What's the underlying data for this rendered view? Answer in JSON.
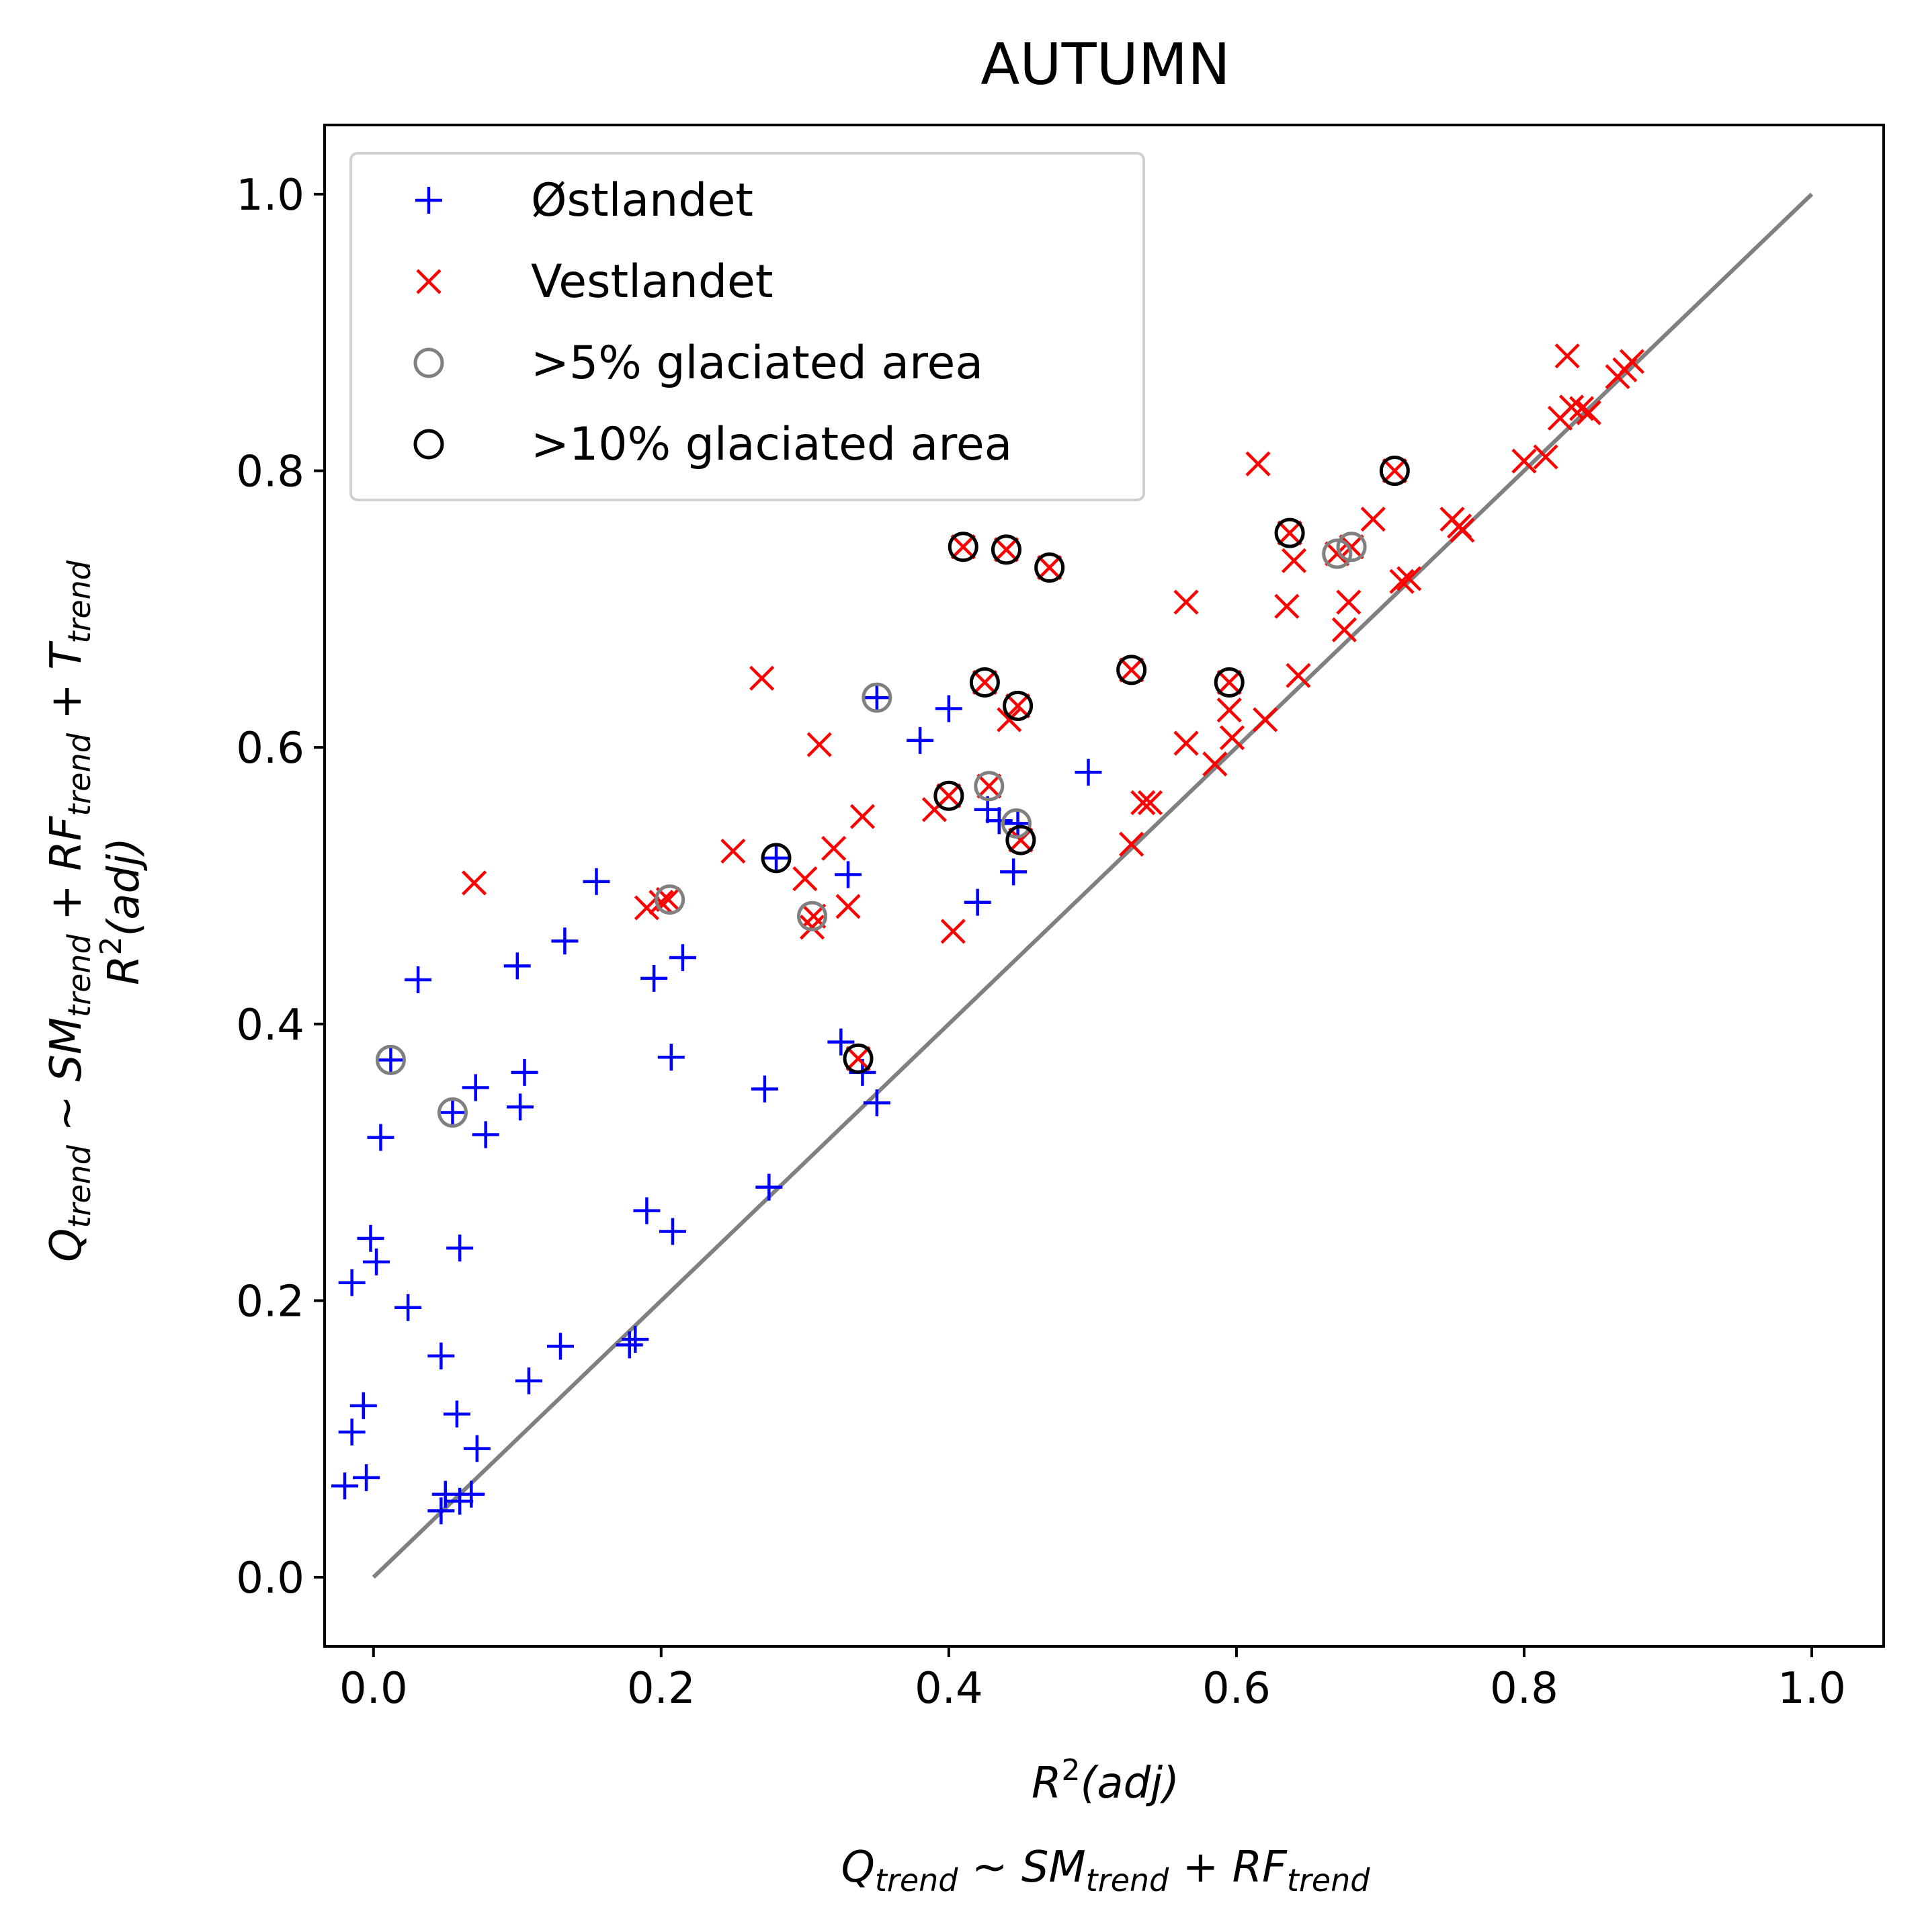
{
  "chart_data": {
    "type": "scatter",
    "title": "AUTUMN",
    "xlabel": {
      "line1_base": "R",
      "line1_sup": "2",
      "line1_rest": "(adj)",
      "line2_q": "Q",
      "line2_q_sub": "trend",
      "line2_tilde": " ~ ",
      "line2_sm": "SM",
      "line2_sm_sub": "trend",
      "line2_plus": " + ",
      "line2_rf": "RF",
      "line2_rf_sub": "trend"
    },
    "ylabel": {
      "line1_q": "Q",
      "line1_q_sub": "trend",
      "line1_tilde": " ~ ",
      "line1_sm": "SM",
      "line1_sm_sub": "trend",
      "line1_plus1": " + ",
      "line1_rf": "RF",
      "line1_rf_sub": "trend",
      "line1_plus2": " + ",
      "line1_t": "T",
      "line1_t_sub": "trend",
      "line2_base": "R",
      "line2_sup": "2",
      "line2_rest": "(adj)"
    },
    "xlim": [
      -0.034,
      1.05
    ],
    "ylim": [
      -0.05,
      1.05
    ],
    "xticks": [
      "0.0",
      "0.2",
      "0.4",
      "0.6",
      "0.8",
      "1.0"
    ],
    "yticks": [
      "0.0",
      "0.2",
      "0.4",
      "0.6",
      "0.8",
      "1.0"
    ],
    "legend_position": "top-left",
    "reference_line": {
      "x": [
        0,
        1
      ],
      "y": [
        0,
        1
      ],
      "color": "#808080"
    },
    "colors": {
      "ostlandet": "#0000ff",
      "vestlandet": "#ff0000",
      "glacier5": "#808080",
      "glacier10": "#000000"
    },
    "series": [
      {
        "name": "Østlandet",
        "marker": "plus",
        "color": "#0000ff",
        "points": [
          [
            -0.02,
            0.066
          ],
          [
            -0.015,
            0.105
          ],
          [
            -0.005,
            0.072
          ],
          [
            -0.007,
            0.124
          ],
          [
            -0.015,
            0.213
          ],
          [
            -0.002,
            0.245
          ],
          [
            0.002,
            0.228
          ],
          [
            0.005,
            0.318
          ],
          [
            0.012,
            0.374
          ],
          [
            0.024,
            0.195
          ],
          [
            0.031,
            0.432
          ],
          [
            0.047,
            0.16
          ],
          [
            0.047,
            0.048
          ],
          [
            0.05,
            0.06
          ],
          [
            0.055,
            0.336
          ],
          [
            0.058,
            0.118
          ],
          [
            0.06,
            0.055
          ],
          [
            0.06,
            0.238
          ],
          [
            0.068,
            0.06
          ],
          [
            0.071,
            0.354
          ],
          [
            0.072,
            0.093
          ],
          [
            0.078,
            0.32
          ],
          [
            0.1,
            0.442
          ],
          [
            0.102,
            0.34
          ],
          [
            0.105,
            0.365
          ],
          [
            0.108,
            0.142
          ],
          [
            0.133,
            0.46
          ],
          [
            0.13,
            0.167
          ],
          [
            0.155,
            0.503
          ],
          [
            0.178,
            0.168
          ],
          [
            0.182,
            0.172
          ],
          [
            0.195,
            0.433
          ],
          [
            0.19,
            0.265
          ],
          [
            0.207,
            0.376
          ],
          [
            0.208,
            0.25
          ],
          [
            0.215,
            0.448
          ],
          [
            0.272,
            0.353
          ],
          [
            0.275,
            0.282
          ],
          [
            0.28,
            0.52
          ],
          [
            0.325,
            0.387
          ],
          [
            0.33,
            0.508
          ],
          [
            0.34,
            0.365
          ],
          [
            0.35,
            0.343
          ],
          [
            0.35,
            0.636
          ],
          [
            0.38,
            0.605
          ],
          [
            0.4,
            0.628
          ],
          [
            0.42,
            0.488
          ],
          [
            0.427,
            0.555
          ],
          [
            0.435,
            0.547
          ],
          [
            0.445,
            0.51
          ],
          [
            0.448,
            0.545
          ],
          [
            0.497,
            0.582
          ]
        ]
      },
      {
        "name": "Vestlandet",
        "marker": "x",
        "color": "#ff0000",
        "points": [
          [
            0.07,
            0.502
          ],
          [
            0.19,
            0.484
          ],
          [
            0.2,
            0.488
          ],
          [
            0.205,
            0.49
          ],
          [
            0.25,
            0.525
          ],
          [
            0.27,
            0.65
          ],
          [
            0.3,
            0.505
          ],
          [
            0.305,
            0.47
          ],
          [
            0.306,
            0.478
          ],
          [
            0.31,
            0.602
          ],
          [
            0.32,
            0.527
          ],
          [
            0.33,
            0.485
          ],
          [
            0.34,
            0.55
          ],
          [
            0.337,
            0.375
          ],
          [
            0.39,
            0.555
          ],
          [
            0.4,
            0.565
          ],
          [
            0.403,
            0.467
          ],
          [
            0.41,
            0.745
          ],
          [
            0.425,
            0.647
          ],
          [
            0.428,
            0.572
          ],
          [
            0.44,
            0.743
          ],
          [
            0.442,
            0.62
          ],
          [
            0.448,
            0.63
          ],
          [
            0.45,
            0.533
          ],
          [
            0.47,
            0.73
          ],
          [
            0.527,
            0.53
          ],
          [
            0.527,
            0.656
          ],
          [
            0.535,
            0.56
          ],
          [
            0.54,
            0.56
          ],
          [
            0.565,
            0.705
          ],
          [
            0.565,
            0.603
          ],
          [
            0.585,
            0.588
          ],
          [
            0.595,
            0.647
          ],
          [
            0.595,
            0.627
          ],
          [
            0.597,
            0.607
          ],
          [
            0.615,
            0.805
          ],
          [
            0.62,
            0.62
          ],
          [
            0.635,
            0.702
          ],
          [
            0.637,
            0.755
          ],
          [
            0.64,
            0.735
          ],
          [
            0.643,
            0.652
          ],
          [
            0.67,
            0.74
          ],
          [
            0.675,
            0.685
          ],
          [
            0.678,
            0.705
          ],
          [
            0.68,
            0.745
          ],
          [
            0.695,
            0.765
          ],
          [
            0.71,
            0.8
          ],
          [
            0.715,
            0.72
          ],
          [
            0.72,
            0.722
          ],
          [
            0.75,
            0.765
          ],
          [
            0.755,
            0.76
          ],
          [
            0.757,
            0.757
          ],
          [
            0.8,
            0.807
          ],
          [
            0.815,
            0.81
          ],
          [
            0.825,
            0.838
          ],
          [
            0.83,
            0.883
          ],
          [
            0.833,
            0.846
          ],
          [
            0.84,
            0.845
          ],
          [
            0.845,
            0.842
          ],
          [
            0.865,
            0.868
          ],
          [
            0.87,
            0.873
          ],
          [
            0.875,
            0.879
          ]
        ]
      },
      {
        "name": ">5% glaciated area",
        "marker": "circle",
        "color": "#808080",
        "points": [
          [
            0.012,
            0.374
          ],
          [
            0.055,
            0.336
          ],
          [
            0.206,
            0.49
          ],
          [
            0.305,
            0.478
          ],
          [
            0.35,
            0.636
          ],
          [
            0.428,
            0.572
          ],
          [
            0.447,
            0.545
          ],
          [
            0.67,
            0.74
          ],
          [
            0.68,
            0.745
          ]
        ]
      },
      {
        "name": ">10% glaciated area",
        "marker": "circle",
        "color": "#000000",
        "points": [
          [
            0.28,
            0.52
          ],
          [
            0.337,
            0.375
          ],
          [
            0.4,
            0.565
          ],
          [
            0.41,
            0.745
          ],
          [
            0.425,
            0.647
          ],
          [
            0.44,
            0.743
          ],
          [
            0.448,
            0.63
          ],
          [
            0.45,
            0.533
          ],
          [
            0.47,
            0.73
          ],
          [
            0.527,
            0.656
          ],
          [
            0.595,
            0.647
          ],
          [
            0.637,
            0.755
          ],
          [
            0.71,
            0.8
          ]
        ]
      }
    ]
  }
}
